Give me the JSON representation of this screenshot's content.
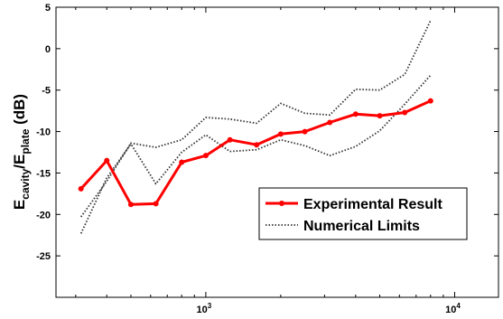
{
  "chart_data": {
    "type": "line",
    "xscale": "log",
    "xlim": [
      250,
      15000
    ],
    "ylim": [
      -30,
      5
    ],
    "grid": false,
    "legend_position": "lower-right",
    "ylabel": {
      "main": "E",
      "sub1": "cavity",
      "slash": "/E",
      "sub2": "plate",
      "unit": " (dB)"
    },
    "xticks": [
      {
        "value": 1000,
        "base": "10",
        "exp": "3"
      },
      {
        "value": 10000,
        "base": "10",
        "exp": "4"
      }
    ],
    "yticks": [
      5,
      0,
      -5,
      -10,
      -15,
      -20,
      -25
    ],
    "series": [
      {
        "name": "Experimental Result",
        "color": "#ff0000",
        "style": "solid-marker",
        "x": [
          315,
          400,
          500,
          630,
          800,
          1000,
          1250,
          1600,
          2000,
          2500,
          3150,
          4000,
          5000,
          6300,
          8000
        ],
        "y": [
          -16.9,
          -13.5,
          -18.8,
          -18.7,
          -13.7,
          -12.9,
          -11.0,
          -11.6,
          -10.3,
          -10.0,
          -8.9,
          -7.9,
          -8.1,
          -7.7,
          -6.3
        ]
      },
      {
        "name": "Numerical Limits",
        "color": "#333333",
        "style": "dotted",
        "x": [
          315,
          400,
          500,
          630,
          800,
          1000,
          1250,
          1600,
          2000,
          2500,
          3150,
          4000,
          5000,
          6300,
          8000
        ],
        "y": [
          -20.3,
          -16.0,
          -11.4,
          -11.9,
          -11.0,
          -8.3,
          -8.5,
          -9.0,
          -6.6,
          -7.8,
          -8.0,
          -4.9,
          -5.0,
          -3.1,
          3.4
        ]
      },
      {
        "name": "",
        "color": "#333333",
        "style": "dotted",
        "x": [
          315,
          400,
          500,
          630,
          800,
          1000,
          1250,
          1600,
          2000,
          2500,
          3150,
          4000,
          5000,
          6300,
          8000
        ],
        "y": [
          -22.3,
          -15.6,
          -11.5,
          -16.3,
          -12.5,
          -10.4,
          -12.4,
          -12.2,
          -11.0,
          -11.7,
          -12.9,
          -11.8,
          -9.9,
          -6.7,
          -3.2
        ]
      }
    ]
  }
}
